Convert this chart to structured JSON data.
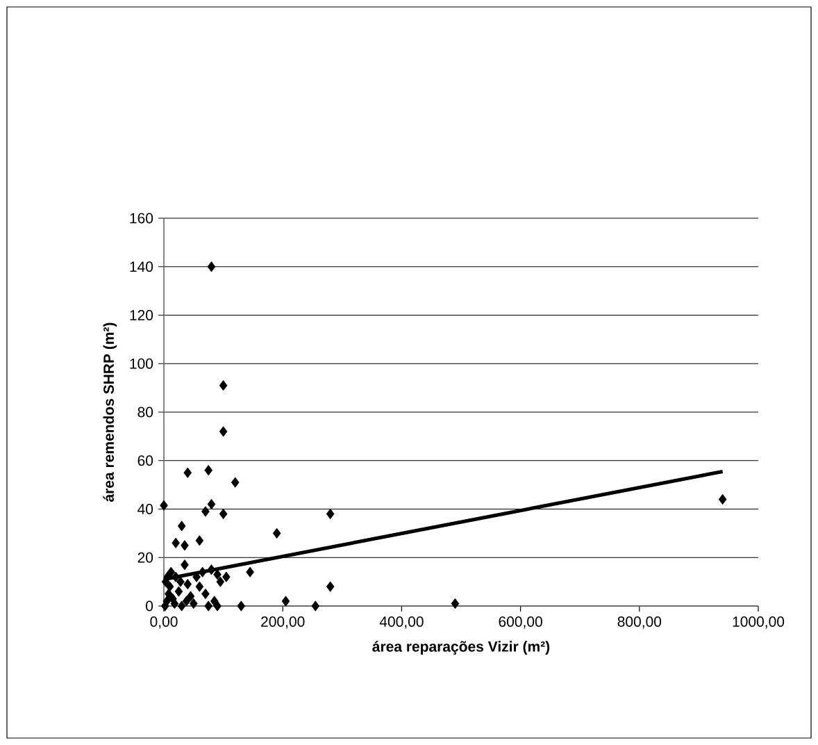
{
  "chart_data": {
    "type": "scatter",
    "xlabel": "área reparações Vizir (m²)",
    "ylabel": "área remendos SHRP (m²)",
    "xlim": [
      0,
      1000
    ],
    "ylim": [
      0,
      160
    ],
    "xticks": [
      {
        "value": 0,
        "label": "0,00"
      },
      {
        "value": 200,
        "label": "200,00"
      },
      {
        "value": 400,
        "label": "400,00"
      },
      {
        "value": 600,
        "label": "600,00"
      },
      {
        "value": 800,
        "label": "800,00"
      },
      {
        "value": 1000,
        "label": "1000,00"
      }
    ],
    "yticks": [
      0,
      20,
      40,
      60,
      80,
      100,
      120,
      140,
      160
    ],
    "grid": "y",
    "marker": "diamond",
    "series": [
      {
        "color": "#000000",
        "x": [
          80,
          100,
          100,
          0,
          40,
          75,
          80,
          120,
          70,
          100,
          30,
          20,
          35,
          60,
          190,
          280,
          145,
          280,
          205,
          255,
          490,
          130,
          940,
          80,
          90,
          95,
          105,
          2,
          5,
          8,
          10,
          3,
          15,
          20,
          25,
          12,
          30,
          35,
          40,
          45,
          50,
          60,
          65,
          70,
          85,
          90,
          75,
          18,
          6,
          28,
          55,
          38
        ],
        "values": [
          140,
          91,
          72,
          41.5,
          55,
          56,
          42,
          51,
          39,
          38,
          33,
          26,
          25,
          27,
          30,
          38,
          14,
          8,
          2,
          0,
          1,
          0,
          44,
          15,
          13,
          10,
          12,
          0,
          2,
          5,
          8,
          10,
          3,
          12,
          6,
          14,
          0,
          17,
          9,
          4,
          1,
          8,
          14,
          5,
          2,
          0,
          0,
          1,
          12,
          10,
          12,
          2
        ]
      },
      {
        "type": "line",
        "color": "#000000",
        "marker": "none",
        "x": [
          0,
          940
        ],
        "values": [
          11,
          55.5
        ]
      }
    ]
  }
}
